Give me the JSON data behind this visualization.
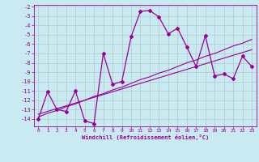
{
  "xlabel": "Windchill (Refroidissement éolien,°C)",
  "background_color": "#c8eaf0",
  "grid_color": "#b0c8cc",
  "line_color": "#990099",
  "x_values": [
    0,
    1,
    2,
    3,
    4,
    5,
    6,
    7,
    8,
    9,
    10,
    11,
    12,
    13,
    14,
    15,
    16,
    17,
    18,
    19,
    20,
    21,
    22,
    23
  ],
  "y_windchill": [
    -14.0,
    -11.1,
    -13.0,
    -13.2,
    -11.0,
    -14.2,
    -14.5,
    -7.0,
    -10.3,
    -10.0,
    -5.2,
    -2.5,
    -2.4,
    -3.1,
    -4.9,
    -4.3,
    -6.3,
    -8.4,
    -5.1,
    -9.4,
    -9.2,
    -9.7,
    -7.3,
    -8.4
  ],
  "y_regression1": [
    -13.8,
    -13.4,
    -13.1,
    -12.7,
    -12.4,
    -12.0,
    -11.6,
    -11.3,
    -10.9,
    -10.6,
    -10.2,
    -9.8,
    -9.5,
    -9.1,
    -8.8,
    -8.4,
    -8.0,
    -7.7,
    -7.3,
    -7.0,
    -6.6,
    -6.2,
    -5.9,
    -5.5
  ],
  "y_regression2": [
    -13.5,
    -13.2,
    -12.9,
    -12.6,
    -12.3,
    -12.0,
    -11.7,
    -11.4,
    -11.1,
    -10.8,
    -10.5,
    -10.2,
    -9.9,
    -9.6,
    -9.3,
    -9.0,
    -8.7,
    -8.4,
    -8.1,
    -7.8,
    -7.5,
    -7.2,
    -6.9,
    -6.6
  ],
  "ylim": [
    -14.8,
    -1.8
  ],
  "xlim": [
    -0.5,
    23.5
  ],
  "yticks": [
    -14,
    -13,
    -12,
    -11,
    -10,
    -9,
    -8,
    -7,
    -6,
    -5,
    -4,
    -3,
    -2
  ],
  "xticks": [
    0,
    1,
    2,
    3,
    4,
    5,
    6,
    7,
    8,
    9,
    10,
    11,
    12,
    13,
    14,
    15,
    16,
    17,
    18,
    19,
    20,
    21,
    22,
    23
  ]
}
